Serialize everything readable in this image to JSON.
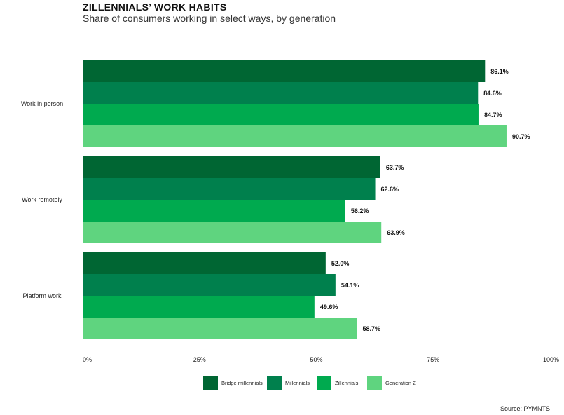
{
  "chart_data": {
    "type": "bar",
    "orientation": "horizontal",
    "title": "ZILLENNIALS’ WORK HABITS",
    "subtitle": "Share of consumers working in select ways, by generation",
    "categories": [
      "Work in person",
      "Work remotely",
      "Platform work"
    ],
    "series": [
      {
        "name": "Bridge millennials",
        "color": "#006633",
        "values": [
          86.1,
          63.7,
          52.0
        ],
        "labels": [
          "86.1%",
          "63.7%",
          "52.0%"
        ]
      },
      {
        "name": "Millennials",
        "color": "#00804d",
        "values": [
          84.6,
          62.6,
          54.1
        ],
        "labels": [
          "84.6%",
          "62.6%",
          "54.1%"
        ]
      },
      {
        "name": "Zillennials",
        "color": "#00aa4f",
        "values": [
          84.7,
          56.2,
          49.6
        ],
        "labels": [
          "84.7%",
          "56.2%",
          "49.6%"
        ]
      },
      {
        "name": "Generation Z",
        "color": "#5fd47f",
        "values": [
          90.7,
          63.9,
          58.7
        ],
        "labels": [
          "90.7%",
          "63.9%",
          "58.7%"
        ]
      }
    ],
    "xlim": [
      0,
      100
    ],
    "xticks": [
      0,
      25,
      50,
      75,
      100
    ],
    "xtick_labels": [
      "0%",
      "25%",
      "50%",
      "75%",
      "100%"
    ],
    "legend_position": "bottom",
    "grid": false,
    "source": "Source: PYMNTS"
  }
}
